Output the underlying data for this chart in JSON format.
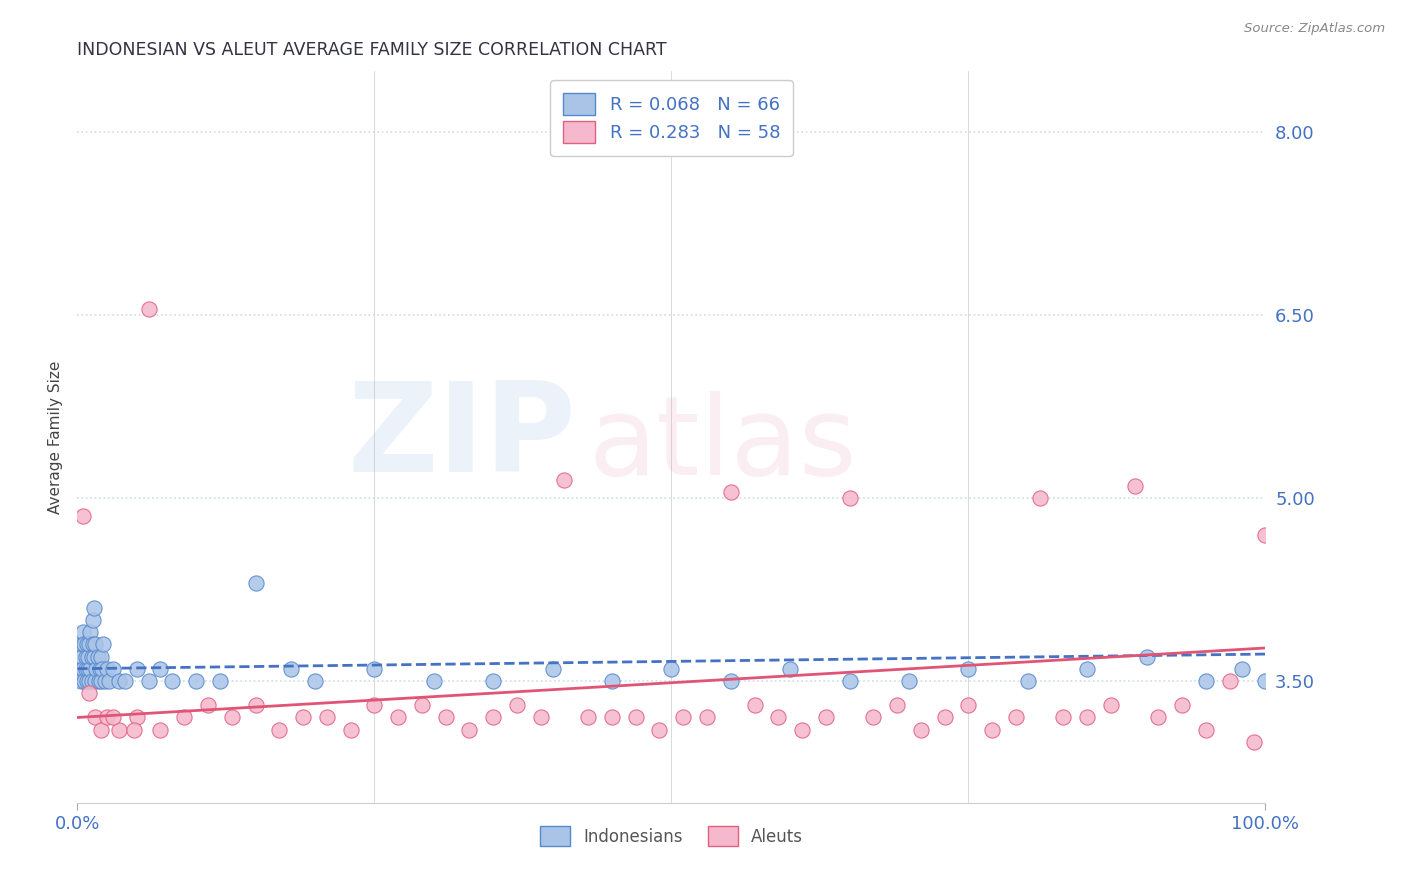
{
  "title": "INDONESIAN VS ALEUT AVERAGE FAMILY SIZE CORRELATION CHART",
  "source_text": "Source: ZipAtlas.com",
  "ylabel": "Average Family Size",
  "xlim": [
    0.0,
    100.0
  ],
  "ylim": [
    2.5,
    8.5
  ],
  "yticks": [
    3.5,
    5.0,
    6.5,
    8.0
  ],
  "yticklabels": [
    "3.50",
    "5.00",
    "6.50",
    "8.00"
  ],
  "xticks": [
    0.0,
    100.0
  ],
  "xticklabels": [
    "0.0%",
    "100.0%"
  ],
  "legend_r1": "R = 0.068",
  "legend_n1": "N = 66",
  "legend_r2": "R = 0.283",
  "legend_n2": "N = 58",
  "color_indonesian_fill": "#aac4e8",
  "color_indonesian_edge": "#5588cc",
  "color_aleut_fill": "#f5b8cc",
  "color_aleut_edge": "#e06080",
  "color_line_indonesian": "#4472c4",
  "color_line_aleut": "#e05575",
  "color_axis_text": "#4472c4",
  "color_title": "#333344",
  "background_color": "#ffffff",
  "gridline_color": "#ccddee",
  "gridline_style": ":",
  "trend_indo_x0": 0.0,
  "trend_indo_y0": 3.6,
  "trend_indo_x1": 100.0,
  "trend_indo_y1": 3.72,
  "trend_aleut_x0": 0.0,
  "trend_aleut_y0": 3.2,
  "trend_aleut_x1": 100.0,
  "trend_aleut_y1": 3.77,
  "indonesian_x": [
    0.2,
    0.3,
    0.4,
    0.4,
    0.5,
    0.5,
    0.6,
    0.6,
    0.7,
    0.7,
    0.8,
    0.8,
    0.9,
    0.9,
    1.0,
    1.0,
    1.1,
    1.1,
    1.2,
    1.2,
    1.3,
    1.3,
    1.4,
    1.4,
    1.5,
    1.5,
    1.6,
    1.7,
    1.8,
    1.9,
    2.0,
    2.0,
    2.1,
    2.2,
    2.3,
    2.5,
    2.7,
    3.0,
    3.5,
    4.0,
    5.0,
    6.0,
    7.0,
    8.0,
    10.0,
    12.0,
    15.0,
    18.0,
    20.0,
    25.0,
    30.0,
    35.0,
    40.0,
    45.0,
    50.0,
    55.0,
    60.0,
    65.0,
    70.0,
    75.0,
    80.0,
    85.0,
    90.0,
    95.0,
    98.0,
    100.0
  ],
  "indonesian_y": [
    3.6,
    3.5,
    3.7,
    3.8,
    3.6,
    3.9,
    3.5,
    3.8,
    3.6,
    3.7,
    3.8,
    3.5,
    3.6,
    3.7,
    3.5,
    3.8,
    3.6,
    3.9,
    3.5,
    3.7,
    3.8,
    4.0,
    3.7,
    4.1,
    3.5,
    3.8,
    3.6,
    3.7,
    3.5,
    3.6,
    3.5,
    3.7,
    3.6,
    3.8,
    3.5,
    3.6,
    3.5,
    3.6,
    3.5,
    3.5,
    3.6,
    3.5,
    3.6,
    3.5,
    3.5,
    3.5,
    4.3,
    3.6,
    3.5,
    3.6,
    3.5,
    3.5,
    3.6,
    3.5,
    3.6,
    3.5,
    3.6,
    3.5,
    3.5,
    3.6,
    3.5,
    3.6,
    3.7,
    3.5,
    3.6,
    3.5
  ],
  "aleut_x": [
    0.5,
    1.0,
    1.5,
    2.0,
    2.5,
    3.5,
    5.0,
    7.0,
    9.0,
    11.0,
    13.0,
    15.0,
    17.0,
    19.0,
    21.0,
    23.0,
    25.0,
    27.0,
    29.0,
    31.0,
    33.0,
    35.0,
    37.0,
    39.0,
    41.0,
    43.0,
    45.0,
    47.0,
    49.0,
    51.0,
    53.0,
    55.0,
    57.0,
    59.0,
    61.0,
    63.0,
    65.0,
    67.0,
    69.0,
    71.0,
    73.0,
    75.0,
    77.0,
    79.0,
    81.0,
    83.0,
    85.0,
    87.0,
    89.0,
    91.0,
    93.0,
    95.0,
    97.0,
    99.0,
    100.0,
    3.0,
    6.0,
    4.8
  ],
  "aleut_y": [
    4.85,
    3.4,
    3.2,
    3.1,
    3.2,
    3.1,
    3.2,
    3.1,
    3.2,
    3.3,
    3.2,
    3.3,
    3.1,
    3.2,
    3.2,
    3.1,
    3.3,
    3.2,
    3.3,
    3.2,
    3.1,
    3.2,
    3.3,
    3.2,
    5.15,
    3.2,
    3.2,
    3.2,
    3.1,
    3.2,
    3.2,
    5.05,
    3.3,
    3.2,
    3.1,
    3.2,
    5.0,
    3.2,
    3.3,
    3.1,
    3.2,
    3.3,
    3.1,
    3.2,
    5.0,
    3.2,
    3.2,
    3.3,
    5.1,
    3.2,
    3.3,
    3.1,
    3.5,
    3.0,
    4.7,
    3.2,
    6.55,
    3.1
  ]
}
